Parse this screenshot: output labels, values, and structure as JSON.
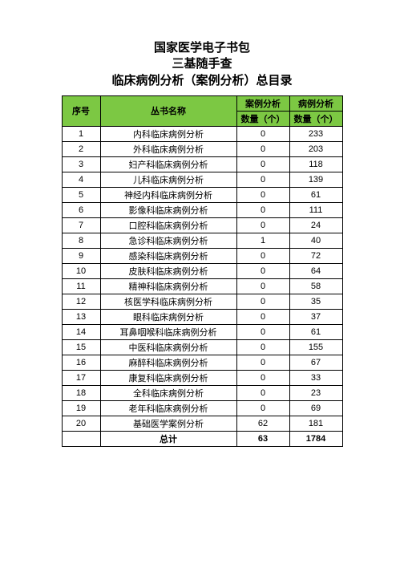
{
  "title": {
    "line1": "国家医学电子书包",
    "line2": "三基随手查",
    "line3": "临床病例分析（案例分析）总目录"
  },
  "headers": {
    "seq": "序号",
    "name": "丛书名称",
    "group_a": "案例分析",
    "group_b": "病例分析",
    "count_label": "数量（个）"
  },
  "rows": [
    {
      "seq": "1",
      "name": "内科临床病例分析",
      "a": "0",
      "b": "233"
    },
    {
      "seq": "2",
      "name": "外科临床病例分析",
      "a": "0",
      "b": "203"
    },
    {
      "seq": "3",
      "name": "妇产科临床病例分析",
      "a": "0",
      "b": "118"
    },
    {
      "seq": "4",
      "name": "儿科临床病例分析",
      "a": "0",
      "b": "139"
    },
    {
      "seq": "5",
      "name": "神经内科临床病例分析",
      "a": "0",
      "b": "61"
    },
    {
      "seq": "6",
      "name": "影像科临床病例分析",
      "a": "0",
      "b": "111"
    },
    {
      "seq": "7",
      "name": "口腔科临床病例分析",
      "a": "0",
      "b": "24"
    },
    {
      "seq": "8",
      "name": "急诊科临床病例分析",
      "a": "1",
      "b": "40"
    },
    {
      "seq": "9",
      "name": "感染科临床病例分析",
      "a": "0",
      "b": "72"
    },
    {
      "seq": "10",
      "name": "皮肤科临床病例分析",
      "a": "0",
      "b": "64"
    },
    {
      "seq": "11",
      "name": "精神科临床病例分析",
      "a": "0",
      "b": "58"
    },
    {
      "seq": "12",
      "name": "核医学科临床病例分析",
      "a": "0",
      "b": "35"
    },
    {
      "seq": "13",
      "name": "眼科临床病例分析",
      "a": "0",
      "b": "37"
    },
    {
      "seq": "14",
      "name": "耳鼻咽喉科临床病例分析",
      "a": "0",
      "b": "61"
    },
    {
      "seq": "15",
      "name": "中医科临床病例分析",
      "a": "0",
      "b": "155"
    },
    {
      "seq": "16",
      "name": "麻醉科临床病例分析",
      "a": "0",
      "b": "67"
    },
    {
      "seq": "17",
      "name": "康复科临床病例分析",
      "a": "0",
      "b": "33"
    },
    {
      "seq": "18",
      "name": "全科临床病例分析",
      "a": "0",
      "b": "23"
    },
    {
      "seq": "19",
      "name": "老年科临床病例分析",
      "a": "0",
      "b": "69"
    },
    {
      "seq": "20",
      "name": "基础医学案例分析",
      "a": "62",
      "b": "181"
    }
  ],
  "totals": {
    "label": "总计",
    "a": "63",
    "b": "1784"
  },
  "style": {
    "header_bg": "#7cc843",
    "border_color": "#000000",
    "font_size_title": 15,
    "font_size_body": 11,
    "col_widths": {
      "seq": 48,
      "name": 170,
      "a": 66,
      "b": 66
    }
  }
}
